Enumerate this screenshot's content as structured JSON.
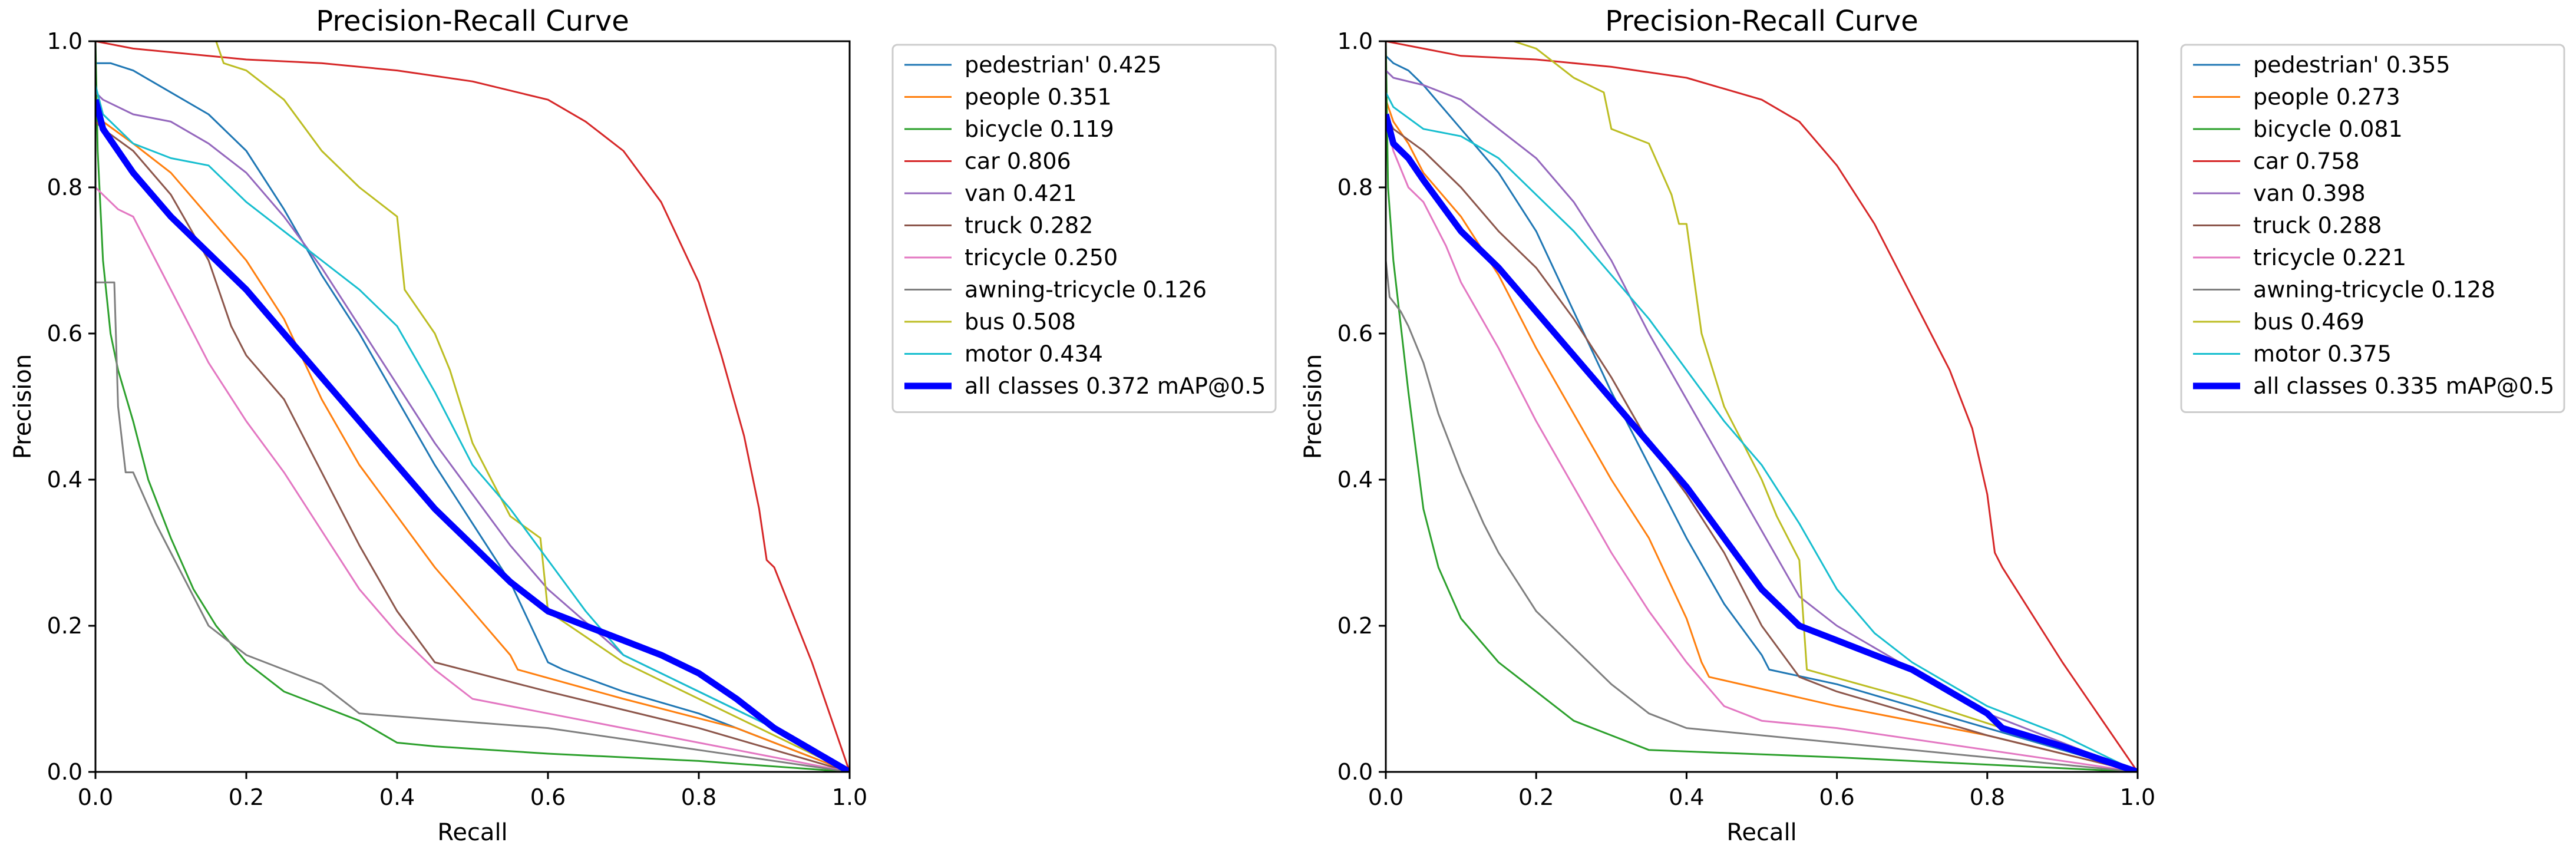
{
  "chart_data": [
    {
      "type": "line",
      "title": "Precision-Recall Curve",
      "xlabel": "Recall",
      "ylabel": "Precision",
      "xlim": [
        0,
        1
      ],
      "ylim": [
        0,
        1
      ],
      "xticks": [
        "0.0",
        "0.2",
        "0.4",
        "0.6",
        "0.8",
        "1.0"
      ],
      "yticks": [
        "0.0",
        "0.2",
        "0.4",
        "0.6",
        "0.8",
        "1.0"
      ],
      "legend_position": "outside-right-top",
      "series": [
        {
          "name": "pedestrian' 0.425",
          "color": "#1f77b4",
          "width": 3,
          "x": [
            0,
            0.01,
            0.02,
            0.05,
            0.1,
            0.15,
            0.2,
            0.25,
            0.3,
            0.35,
            0.4,
            0.45,
            0.5,
            0.55,
            0.6,
            0.62,
            0.7,
            0.8,
            0.9,
            1.0
          ],
          "y": [
            0.97,
            0.97,
            0.97,
            0.96,
            0.93,
            0.9,
            0.85,
            0.77,
            0.68,
            0.6,
            0.51,
            0.42,
            0.34,
            0.26,
            0.15,
            0.14,
            0.11,
            0.08,
            0.04,
            0.0
          ]
        },
        {
          "name": "people 0.351",
          "color": "#ff7f0e",
          "width": 3,
          "x": [
            0,
            0.01,
            0.05,
            0.1,
            0.15,
            0.2,
            0.25,
            0.3,
            0.35,
            0.4,
            0.45,
            0.5,
            0.55,
            0.56,
            0.7,
            0.85,
            1.0
          ],
          "y": [
            0.9,
            0.89,
            0.86,
            0.82,
            0.76,
            0.7,
            0.62,
            0.51,
            0.42,
            0.35,
            0.28,
            0.22,
            0.16,
            0.14,
            0.1,
            0.06,
            0.0
          ]
        },
        {
          "name": "bicycle 0.119",
          "color": "#2ca02c",
          "width": 3,
          "x": [
            0,
            0.003,
            0.01,
            0.02,
            0.03,
            0.05,
            0.07,
            0.1,
            0.13,
            0.16,
            0.2,
            0.25,
            0.3,
            0.35,
            0.4,
            0.45,
            0.6,
            0.8,
            1.0
          ],
          "y": [
            1.0,
            0.85,
            0.7,
            0.6,
            0.55,
            0.48,
            0.4,
            0.32,
            0.25,
            0.2,
            0.15,
            0.11,
            0.09,
            0.07,
            0.04,
            0.035,
            0.025,
            0.015,
            0.0
          ]
        },
        {
          "name": "car 0.806",
          "color": "#d62728",
          "width": 3,
          "x": [
            0,
            0.05,
            0.1,
            0.2,
            0.3,
            0.4,
            0.5,
            0.6,
            0.65,
            0.7,
            0.75,
            0.8,
            0.83,
            0.86,
            0.88,
            0.89,
            0.9,
            0.95,
            1.0
          ],
          "y": [
            1.0,
            0.99,
            0.985,
            0.975,
            0.97,
            0.96,
            0.945,
            0.92,
            0.89,
            0.85,
            0.78,
            0.67,
            0.57,
            0.46,
            0.36,
            0.29,
            0.28,
            0.15,
            0.0
          ]
        },
        {
          "name": "van 0.421",
          "color": "#9467bd",
          "width": 3,
          "x": [
            0,
            0.01,
            0.05,
            0.1,
            0.15,
            0.2,
            0.25,
            0.3,
            0.35,
            0.4,
            0.45,
            0.5,
            0.55,
            0.6,
            0.7,
            0.8,
            0.9,
            1.0
          ],
          "y": [
            0.93,
            0.92,
            0.9,
            0.89,
            0.86,
            0.82,
            0.76,
            0.69,
            0.61,
            0.53,
            0.45,
            0.38,
            0.31,
            0.25,
            0.16,
            0.11,
            0.06,
            0.0
          ]
        },
        {
          "name": "truck 0.282",
          "color": "#8c564b",
          "width": 3,
          "x": [
            0,
            0.01,
            0.05,
            0.1,
            0.15,
            0.18,
            0.2,
            0.25,
            0.3,
            0.35,
            0.4,
            0.45,
            0.6,
            0.8,
            1.0
          ],
          "y": [
            0.89,
            0.88,
            0.85,
            0.79,
            0.7,
            0.61,
            0.57,
            0.51,
            0.41,
            0.31,
            0.22,
            0.15,
            0.11,
            0.06,
            0.0
          ]
        },
        {
          "name": "tricycle 0.250",
          "color": "#e377c2",
          "width": 3,
          "x": [
            0,
            0.01,
            0.03,
            0.05,
            0.08,
            0.1,
            0.15,
            0.2,
            0.25,
            0.3,
            0.35,
            0.4,
            0.45,
            0.5,
            0.7,
            1.0
          ],
          "y": [
            0.8,
            0.79,
            0.77,
            0.76,
            0.7,
            0.66,
            0.56,
            0.48,
            0.41,
            0.33,
            0.25,
            0.19,
            0.14,
            0.1,
            0.06,
            0.0
          ]
        },
        {
          "name": "awning-tricycle 0.126",
          "color": "#7f7f7f",
          "width": 3,
          "x": [
            0,
            0.005,
            0.025,
            0.03,
            0.04,
            0.05,
            0.08,
            0.1,
            0.12,
            0.15,
            0.2,
            0.25,
            0.3,
            0.35,
            0.6,
            0.8,
            1.0
          ],
          "y": [
            0.67,
            0.67,
            0.67,
            0.5,
            0.41,
            0.41,
            0.34,
            0.3,
            0.26,
            0.2,
            0.16,
            0.14,
            0.12,
            0.08,
            0.06,
            0.03,
            0.0
          ]
        },
        {
          "name": "bus 0.508",
          "color": "#bcbd22",
          "width": 3,
          "x": [
            0.16,
            0.17,
            0.2,
            0.25,
            0.3,
            0.33,
            0.35,
            0.4,
            0.41,
            0.45,
            0.47,
            0.5,
            0.55,
            0.59,
            0.6,
            0.7,
            0.8,
            0.9,
            1.0
          ],
          "y": [
            1.0,
            0.97,
            0.96,
            0.92,
            0.85,
            0.82,
            0.8,
            0.76,
            0.66,
            0.6,
            0.55,
            0.45,
            0.35,
            0.32,
            0.22,
            0.15,
            0.1,
            0.05,
            0.0
          ]
        },
        {
          "name": "motor 0.434",
          "color": "#17becf",
          "width": 3,
          "x": [
            0,
            0.01,
            0.05,
            0.1,
            0.15,
            0.2,
            0.25,
            0.3,
            0.35,
            0.4,
            0.45,
            0.5,
            0.55,
            0.6,
            0.65,
            0.7,
            0.8,
            0.9,
            1.0
          ],
          "y": [
            0.94,
            0.9,
            0.86,
            0.84,
            0.83,
            0.78,
            0.74,
            0.7,
            0.66,
            0.61,
            0.52,
            0.42,
            0.36,
            0.29,
            0.22,
            0.16,
            0.11,
            0.06,
            0.0
          ]
        },
        {
          "name": "all classes 0.372 mAP@0.5",
          "color": "#0000ff",
          "width": 11,
          "x": [
            0,
            0.01,
            0.03,
            0.05,
            0.1,
            0.15,
            0.2,
            0.25,
            0.3,
            0.35,
            0.4,
            0.45,
            0.5,
            0.55,
            0.6,
            0.65,
            0.7,
            0.75,
            0.8,
            0.85,
            0.9,
            0.95,
            1.0
          ],
          "y": [
            0.92,
            0.88,
            0.85,
            0.82,
            0.76,
            0.71,
            0.66,
            0.6,
            0.54,
            0.48,
            0.42,
            0.36,
            0.31,
            0.26,
            0.22,
            0.2,
            0.18,
            0.16,
            0.135,
            0.1,
            0.06,
            0.03,
            0.0
          ]
        }
      ]
    },
    {
      "type": "line",
      "title": "Precision-Recall Curve",
      "xlabel": "Recall",
      "ylabel": "Precision",
      "xlim": [
        0,
        1
      ],
      "ylim": [
        0,
        1
      ],
      "xticks": [
        "0.0",
        "0.2",
        "0.4",
        "0.6",
        "0.8",
        "1.0"
      ],
      "yticks": [
        "0.0",
        "0.2",
        "0.4",
        "0.6",
        "0.8",
        "1.0"
      ],
      "legend_position": "outside-right-top",
      "series": [
        {
          "name": "pedestrian' 0.355",
          "color": "#1f77b4",
          "width": 3,
          "x": [
            0,
            0.01,
            0.03,
            0.05,
            0.1,
            0.15,
            0.2,
            0.25,
            0.3,
            0.35,
            0.4,
            0.45,
            0.5,
            0.51,
            0.6,
            0.8,
            1.0
          ],
          "y": [
            0.98,
            0.97,
            0.96,
            0.94,
            0.88,
            0.82,
            0.74,
            0.63,
            0.52,
            0.42,
            0.32,
            0.23,
            0.16,
            0.14,
            0.12,
            0.06,
            0.0
          ]
        },
        {
          "name": "people 0.273",
          "color": "#ff7f0e",
          "width": 3,
          "x": [
            0,
            0.01,
            0.03,
            0.05,
            0.1,
            0.15,
            0.2,
            0.25,
            0.3,
            0.35,
            0.4,
            0.42,
            0.43,
            0.6,
            0.8,
            1.0
          ],
          "y": [
            0.92,
            0.89,
            0.86,
            0.82,
            0.76,
            0.68,
            0.58,
            0.49,
            0.4,
            0.32,
            0.21,
            0.15,
            0.13,
            0.09,
            0.05,
            0.0
          ]
        },
        {
          "name": "bicycle 0.081",
          "color": "#2ca02c",
          "width": 3,
          "x": [
            0,
            0.003,
            0.01,
            0.03,
            0.05,
            0.07,
            0.1,
            0.15,
            0.2,
            0.25,
            0.3,
            0.35,
            0.6,
            0.8,
            1.0
          ],
          "y": [
            1.0,
            0.8,
            0.7,
            0.52,
            0.36,
            0.28,
            0.21,
            0.15,
            0.11,
            0.07,
            0.05,
            0.03,
            0.02,
            0.01,
            0.0
          ]
        },
        {
          "name": "car 0.758",
          "color": "#d62728",
          "width": 3,
          "x": [
            0,
            0.05,
            0.1,
            0.2,
            0.3,
            0.4,
            0.5,
            0.55,
            0.6,
            0.65,
            0.7,
            0.75,
            0.78,
            0.8,
            0.81,
            0.82,
            0.9,
            1.0
          ],
          "y": [
            1.0,
            0.99,
            0.98,
            0.975,
            0.965,
            0.95,
            0.92,
            0.89,
            0.83,
            0.75,
            0.65,
            0.55,
            0.47,
            0.38,
            0.3,
            0.28,
            0.15,
            0.0
          ]
        },
        {
          "name": "van 0.398",
          "color": "#9467bd",
          "width": 3,
          "x": [
            0,
            0.01,
            0.05,
            0.1,
            0.15,
            0.2,
            0.25,
            0.3,
            0.35,
            0.4,
            0.45,
            0.5,
            0.55,
            0.6,
            0.7,
            0.8,
            1.0
          ],
          "y": [
            0.96,
            0.95,
            0.94,
            0.92,
            0.88,
            0.84,
            0.78,
            0.7,
            0.6,
            0.51,
            0.42,
            0.33,
            0.24,
            0.2,
            0.14,
            0.08,
            0.0
          ]
        },
        {
          "name": "truck 0.288",
          "color": "#8c564b",
          "width": 3,
          "x": [
            0,
            0.01,
            0.05,
            0.1,
            0.15,
            0.2,
            0.25,
            0.3,
            0.35,
            0.4,
            0.45,
            0.5,
            0.55,
            0.6,
            0.8,
            1.0
          ],
          "y": [
            0.9,
            0.88,
            0.85,
            0.8,
            0.74,
            0.69,
            0.62,
            0.54,
            0.45,
            0.38,
            0.3,
            0.2,
            0.13,
            0.11,
            0.05,
            0.0
          ]
        },
        {
          "name": "tricycle 0.221",
          "color": "#e377c2",
          "width": 3,
          "x": [
            0,
            0.01,
            0.03,
            0.05,
            0.08,
            0.1,
            0.15,
            0.2,
            0.25,
            0.3,
            0.35,
            0.4,
            0.45,
            0.5,
            0.6,
            0.8,
            1.0
          ],
          "y": [
            0.89,
            0.85,
            0.8,
            0.78,
            0.72,
            0.67,
            0.58,
            0.48,
            0.39,
            0.3,
            0.22,
            0.15,
            0.09,
            0.07,
            0.06,
            0.03,
            0.0
          ]
        },
        {
          "name": "awning-tricycle 0.128",
          "color": "#7f7f7f",
          "width": 3,
          "x": [
            0,
            0.005,
            0.02,
            0.03,
            0.05,
            0.07,
            0.1,
            0.13,
            0.15,
            0.2,
            0.25,
            0.3,
            0.35,
            0.4,
            0.6,
            0.8,
            1.0
          ],
          "y": [
            0.7,
            0.65,
            0.63,
            0.61,
            0.56,
            0.49,
            0.41,
            0.34,
            0.3,
            0.22,
            0.17,
            0.12,
            0.08,
            0.06,
            0.04,
            0.02,
            0.0
          ]
        },
        {
          "name": "bus 0.469",
          "color": "#bcbd22",
          "width": 3,
          "x": [
            0.17,
            0.2,
            0.25,
            0.29,
            0.3,
            0.35,
            0.38,
            0.39,
            0.4,
            0.42,
            0.45,
            0.48,
            0.5,
            0.52,
            0.55,
            0.56,
            0.7,
            0.85,
            1.0
          ],
          "y": [
            1.0,
            0.99,
            0.95,
            0.93,
            0.88,
            0.86,
            0.79,
            0.75,
            0.75,
            0.6,
            0.5,
            0.44,
            0.4,
            0.35,
            0.29,
            0.14,
            0.1,
            0.05,
            0.0
          ]
        },
        {
          "name": "motor 0.375",
          "color": "#17becf",
          "width": 3,
          "x": [
            0,
            0.01,
            0.05,
            0.1,
            0.15,
            0.2,
            0.25,
            0.3,
            0.35,
            0.4,
            0.45,
            0.5,
            0.55,
            0.6,
            0.65,
            0.7,
            0.8,
            0.9,
            1.0
          ],
          "y": [
            0.93,
            0.91,
            0.88,
            0.87,
            0.84,
            0.79,
            0.74,
            0.68,
            0.62,
            0.55,
            0.48,
            0.42,
            0.34,
            0.25,
            0.19,
            0.15,
            0.09,
            0.05,
            0.0
          ]
        },
        {
          "name": "all classes 0.335 mAP@0.5",
          "color": "#0000ff",
          "width": 11,
          "x": [
            0,
            0.01,
            0.03,
            0.05,
            0.1,
            0.15,
            0.2,
            0.25,
            0.3,
            0.35,
            0.4,
            0.45,
            0.5,
            0.55,
            0.6,
            0.65,
            0.7,
            0.75,
            0.8,
            0.82,
            0.9,
            1.0
          ],
          "y": [
            0.9,
            0.86,
            0.84,
            0.81,
            0.74,
            0.69,
            0.63,
            0.57,
            0.51,
            0.45,
            0.39,
            0.32,
            0.25,
            0.2,
            0.18,
            0.16,
            0.14,
            0.11,
            0.08,
            0.06,
            0.035,
            0.0
          ]
        }
      ]
    }
  ]
}
